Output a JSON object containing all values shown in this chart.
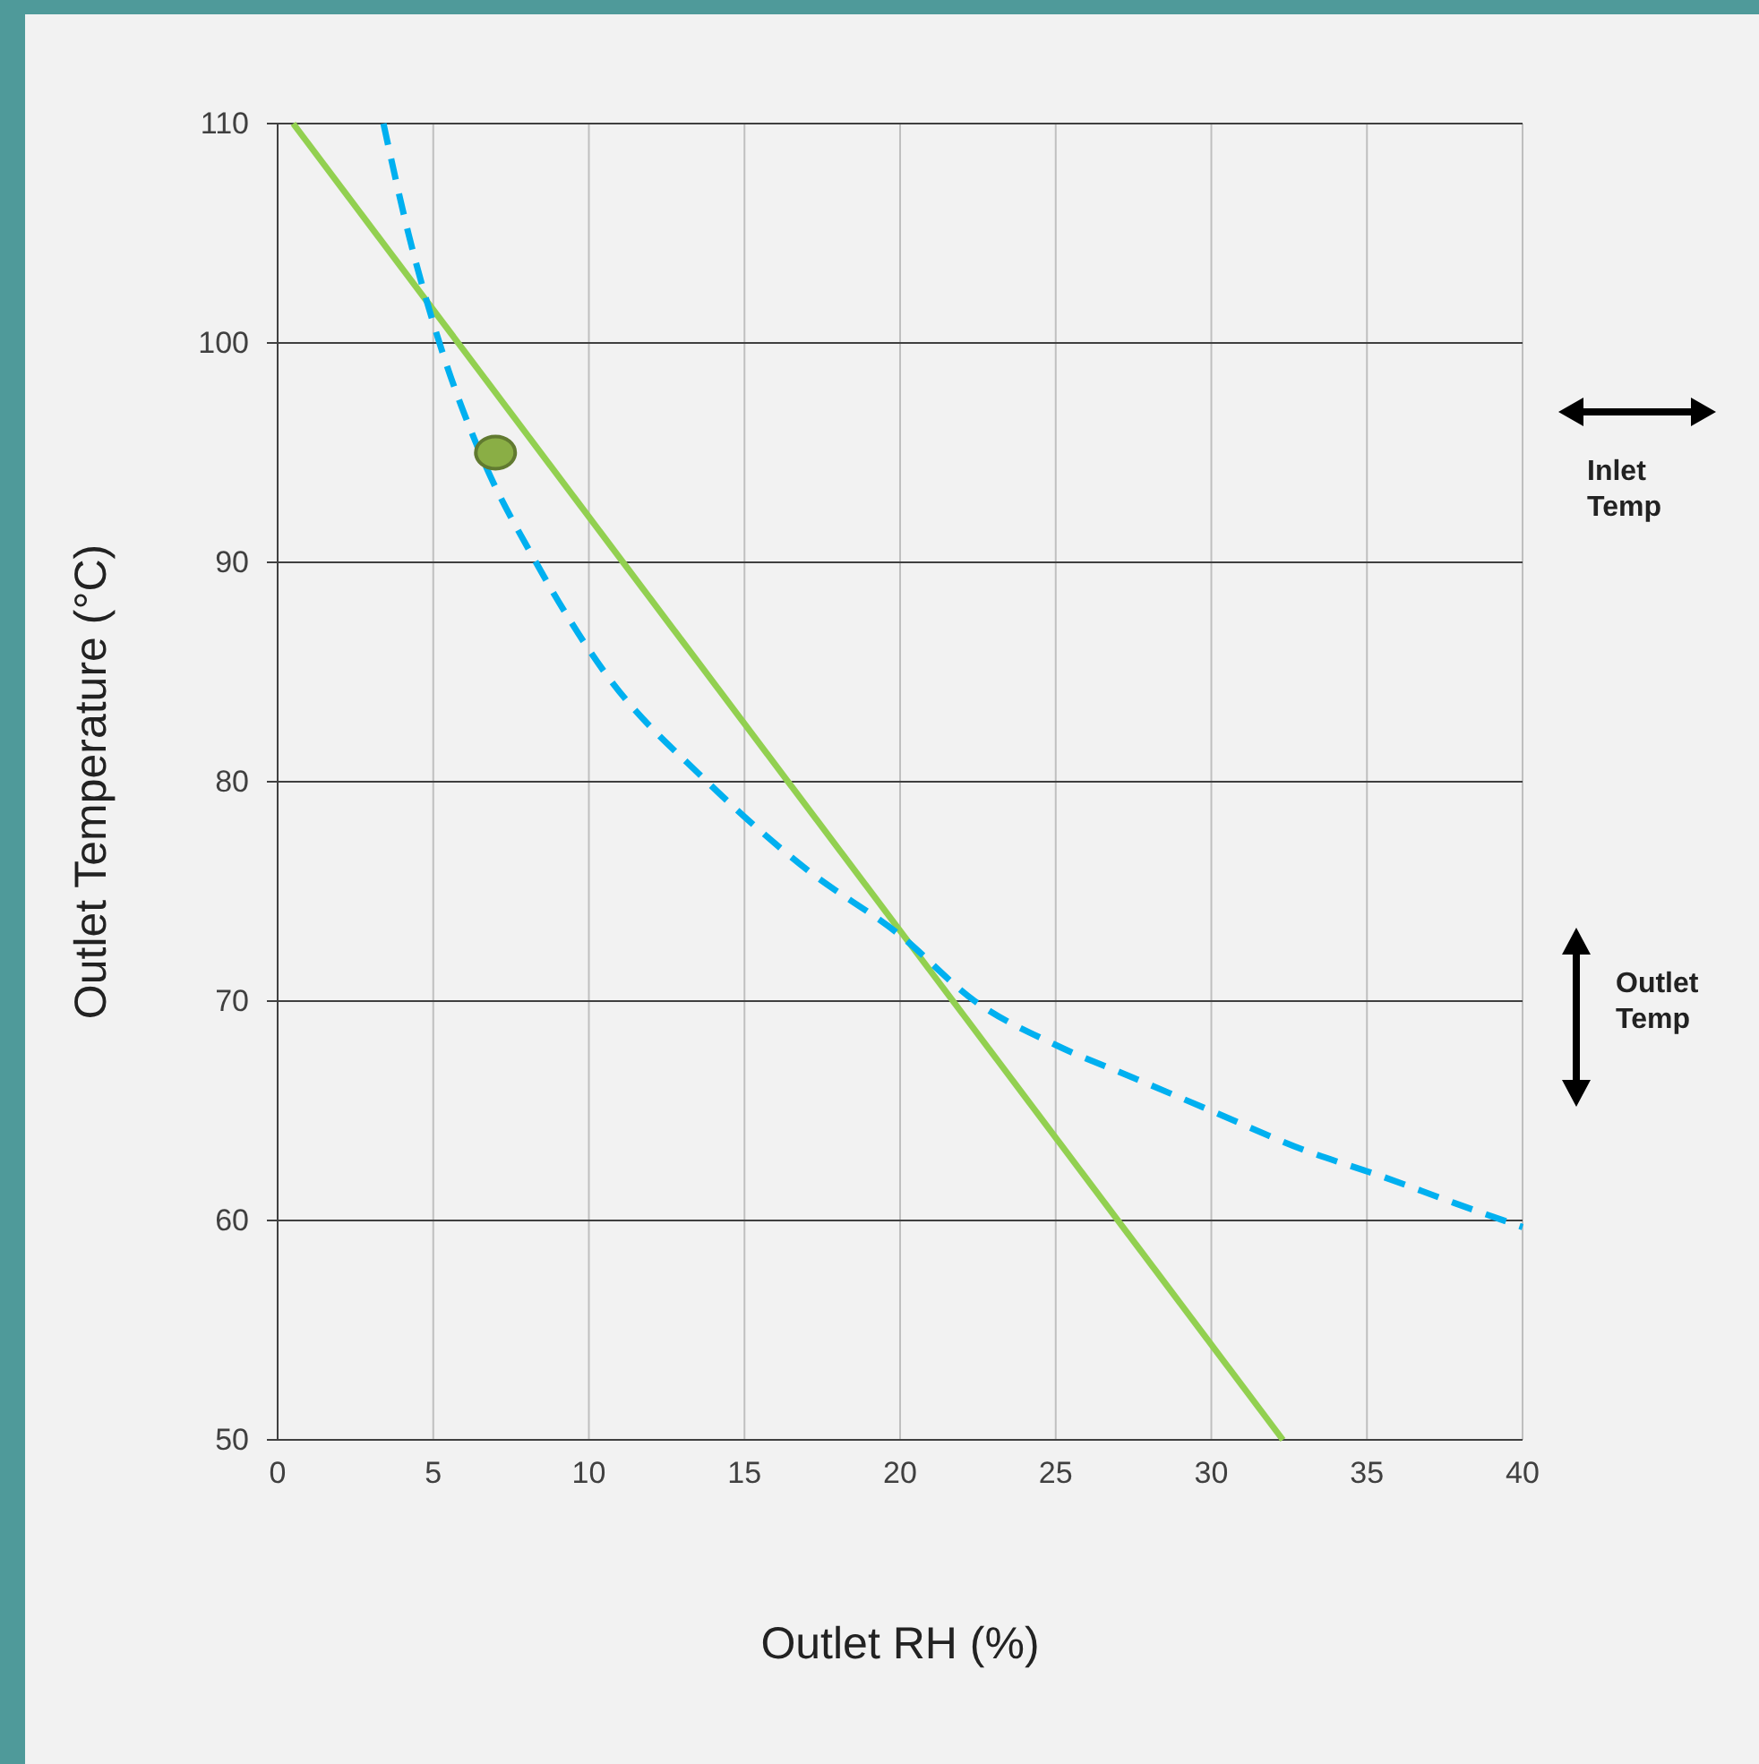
{
  "chart_data": {
    "type": "line",
    "xlabel": "Outlet RH (%)",
    "ylabel": "Outlet Temperature (°C)",
    "xlim": [
      0,
      40
    ],
    "ylim": [
      50,
      110
    ],
    "xticks": [
      0,
      5,
      10,
      15,
      20,
      25,
      30,
      35,
      40
    ],
    "yticks": [
      50,
      60,
      70,
      80,
      90,
      100,
      110
    ],
    "grid": true,
    "series": [
      {
        "color": "#92d050",
        "line_style": "solid",
        "marker": "none",
        "x": [
          0.5,
          32.3
        ],
        "values": [
          110,
          50
        ]
      },
      {
        "color": "#00b0f0",
        "line_style": "dashed",
        "marker": "none",
        "x": [
          3.4,
          4.2,
          5.2,
          6.5,
          8.3,
          10.5,
          13.8,
          17,
          20,
          22.4,
          25,
          27.5,
          30,
          33,
          35.5,
          37.8,
          40
        ],
        "values": [
          110,
          105,
          100,
          95,
          90,
          85,
          80,
          76,
          73,
          70,
          68,
          66.5,
          65,
          63.2,
          62,
          60.8,
          59.7
        ]
      },
      {
        "type": "scatter",
        "color": "#8aae45",
        "marker": "circle",
        "x": [
          7
        ],
        "values": [
          95
        ]
      }
    ],
    "annotations": [
      "Inlet Temp",
      "Outlet Temp"
    ]
  }
}
